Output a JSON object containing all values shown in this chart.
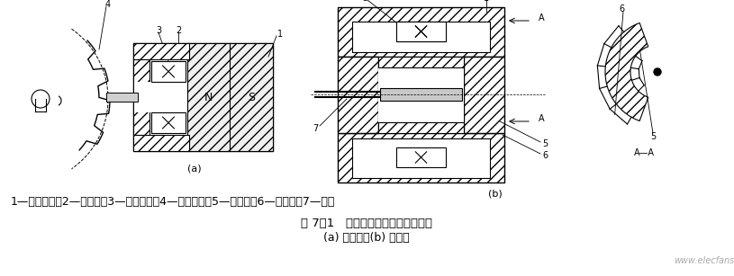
{
  "background_color": "#ffffff",
  "fig_width": 8.15,
  "fig_height": 3.07,
  "dpi": 100,
  "text_line1": "1—永久磁铁；2—软磁铁；3—感应线圈；4—测量齿轮；5—内齿轮；6—外齿轮；7—转轴",
  "text_line2": "图 7－1   变磁通式磁电传感器结构图",
  "text_line3": "(a) 开磁路；(b) 闭磁路",
  "watermark": "www.elecfans.com",
  "text_color": "#000000",
  "font_size_main": 9,
  "font_size_label": 8,
  "font_size_watermark": 7
}
